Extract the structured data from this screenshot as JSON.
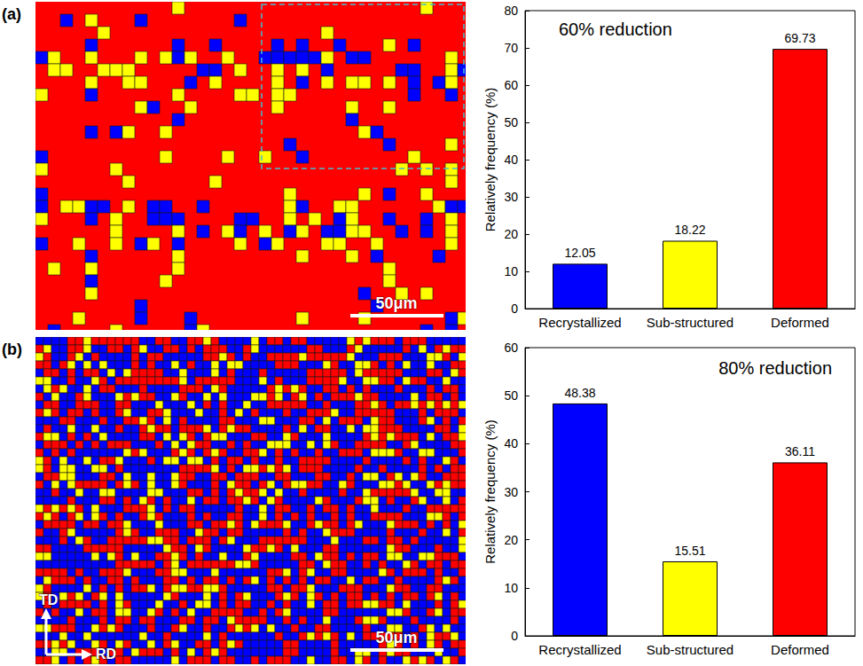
{
  "figure": {
    "panel_labels": [
      "(a)",
      "(b)"
    ],
    "scale_bar": "50μm",
    "directions": [
      "TD",
      "RD"
    ]
  },
  "chart_data": [
    {
      "type": "bar",
      "title": "60% reduction",
      "ylabel": "Relatively frequency (%)",
      "categories": [
        "Recrystallized",
        "Sub-structured",
        "Deformed"
      ],
      "values": [
        12.05,
        18.22,
        69.73
      ],
      "colors": [
        "#0000ff",
        "#ffff00",
        "#ff0000"
      ],
      "ylim": [
        0,
        80
      ],
      "yticks": [
        0,
        10,
        20,
        30,
        40,
        50,
        60,
        70,
        80
      ],
      "grid": false,
      "data_labels": true
    },
    {
      "type": "bar",
      "title": "80% reduction",
      "ylabel": "Relatively frequency (%)",
      "categories": [
        "Recrystallized",
        "Sub-structured",
        "Deformed"
      ],
      "values": [
        48.38,
        15.51,
        36.11
      ],
      "colors": [
        "#0000ff",
        "#ffff00",
        "#ff0000"
      ],
      "ylim": [
        0,
        60
      ],
      "yticks": [
        0,
        10,
        20,
        30,
        40,
        50,
        60
      ],
      "grid": false,
      "data_labels": true
    }
  ]
}
